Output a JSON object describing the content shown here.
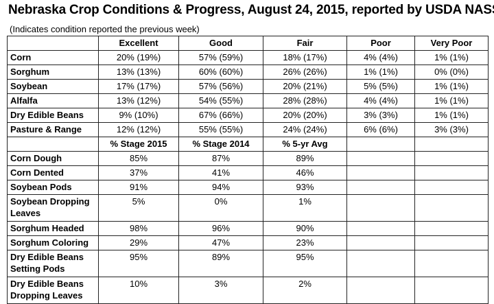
{
  "title": "Nebraska Crop Conditions & Progress, August 24, 2015, reported by USDA NASS",
  "subtitle": "(Indicates condition reported the previous week)",
  "conditions": {
    "headers": [
      "Excellent",
      "Good",
      "Fair",
      "Poor",
      "Very Poor"
    ],
    "rows": [
      {
        "crop": "Corn",
        "values": [
          "20% (19%)",
          "57% (59%)",
          "18% (17%)",
          "4% (4%)",
          "1% (1%)"
        ]
      },
      {
        "crop": "Sorghum",
        "values": [
          "13% (13%)",
          "60% (60%)",
          "26% (26%)",
          "1% (1%)",
          "0% (0%)"
        ]
      },
      {
        "crop": "Soybean",
        "values": [
          "17% (17%)",
          "57% (56%)",
          "20% (21%)",
          "5% (5%)",
          "1% (1%)"
        ]
      },
      {
        "crop": "Alfalfa",
        "values": [
          "13% (12%)",
          "54% (55%)",
          "28% (28%)",
          "4% (4%)",
          "1% (1%)"
        ]
      },
      {
        "crop": "Dry Edible Beans",
        "values": [
          "9% (10%)",
          "67% (66%)",
          "20% (20%)",
          "3% (3%)",
          "1% (1%)"
        ]
      },
      {
        "crop": "Pasture & Range",
        "values": [
          "12% (12%)",
          "55% (55%)",
          "24% (24%)",
          "6% (6%)",
          "3% (3%)"
        ]
      }
    ]
  },
  "progress": {
    "headers": [
      "% Stage 2015",
      "% Stage 2014",
      "% 5-yr Avg"
    ],
    "rows": [
      {
        "stage": "Corn Dough",
        "values": [
          "85%",
          "87%",
          "89%"
        ]
      },
      {
        "stage": "Corn Dented",
        "values": [
          "37%",
          "41%",
          "46%"
        ]
      },
      {
        "stage": "Soybean Pods",
        "values": [
          "91%",
          "94%",
          "93%"
        ]
      },
      {
        "stage": "Soybean Dropping Leaves",
        "values": [
          "5%",
          "0%",
          "1%"
        ]
      },
      {
        "stage": "Sorghum Headed",
        "values": [
          "98%",
          "96%",
          "90%"
        ]
      },
      {
        "stage": "Sorghum Coloring",
        "values": [
          "29%",
          "47%",
          "23%"
        ]
      },
      {
        "stage": "Dry Edible Beans Setting Pods",
        "values": [
          "95%",
          "89%",
          "95%"
        ]
      },
      {
        "stage": "Dry Edible Beans Dropping Leaves",
        "values": [
          "10%",
          "3%",
          "2%"
        ]
      }
    ]
  }
}
